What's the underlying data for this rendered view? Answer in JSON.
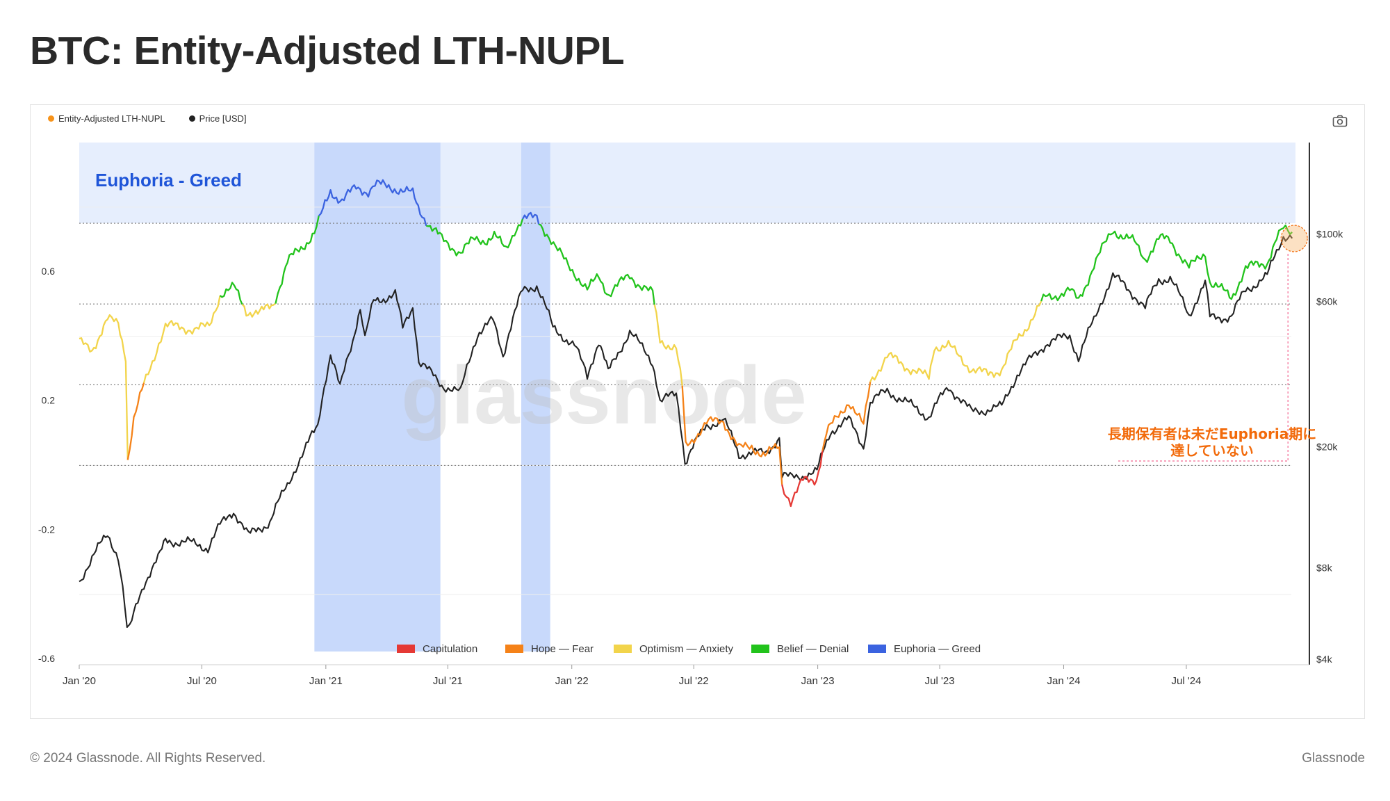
{
  "page": {
    "title": "BTC: Entity-Adjusted LTH-NUPL",
    "footer_copyright": "© 2024 Glassnode. All Rights Reserved.",
    "footer_brand": "Glassnode",
    "watermark": "glassnode"
  },
  "legend_top": [
    {
      "label": "Entity-Adjusted LTH-NUPL",
      "color": "#f7931a"
    },
    {
      "label": "Price [USD]",
      "color": "#222222"
    }
  ],
  "toolbar": {
    "camera_icon": "camera-icon"
  },
  "chart_data": {
    "type": "line",
    "x_axis": {
      "ticks": [
        "Jan '20",
        "Jul '20",
        "Jan '21",
        "Jul '21",
        "Jan '22",
        "Jul '22",
        "Jan '23",
        "Jul '23",
        "Jan '24",
        "Jul '24"
      ],
      "range": [
        "2020-01-01",
        "2024-12-10"
      ]
    },
    "y_left": {
      "range": [
        -0.6,
        1.0
      ],
      "ticks": [
        "0.6",
        "0.2",
        "-0.2",
        "-0.6"
      ],
      "tick_values": [
        0.6,
        0.2,
        -0.2,
        -0.6
      ]
    },
    "y_right": {
      "scale": "log",
      "range": [
        4000,
        200000
      ],
      "ticks": [
        "$100k",
        "$60k",
        "$20k",
        "$8k",
        "$4k"
      ],
      "tick_values": [
        100000,
        60000,
        20000,
        8000,
        4000
      ]
    },
    "zone_thresholds": [
      0.75,
      0.5,
      0.25,
      0.0
    ],
    "zones": [
      {
        "name": "Capitulation",
        "color": "#e53935",
        "below": 0.0
      },
      {
        "name": "Hope — Fear",
        "color": "#f58218",
        "from": 0.0,
        "to": 0.25
      },
      {
        "name": "Optimism — Anxiety",
        "color": "#f2d44b",
        "from": 0.25,
        "to": 0.5
      },
      {
        "name": "Belief — Denial",
        "color": "#22c31c",
        "from": 0.5,
        "to": 0.75
      },
      {
        "name": "Euphoria — Greed",
        "color": "#3b63e0",
        "above": 0.75
      }
    ],
    "euphoria_label": "Euphoria - Greed",
    "euphoria_periods": [
      [
        "2020-12-15",
        "2021-06-20"
      ],
      [
        "2021-10-18",
        "2021-11-30"
      ]
    ],
    "series": [
      {
        "name": "Entity-Adjusted LTH-NUPL",
        "points": [
          [
            "2020-01-01",
            0.38
          ],
          [
            "2020-01-20",
            0.36
          ],
          [
            "2020-02-12",
            0.45
          ],
          [
            "2020-02-28",
            0.44
          ],
          [
            "2020-03-10",
            0.34
          ],
          [
            "2020-03-13",
            0.02
          ],
          [
            "2020-03-22",
            0.14
          ],
          [
            "2020-04-06",
            0.25
          ],
          [
            "2020-04-28",
            0.38
          ],
          [
            "2020-05-08",
            0.43
          ],
          [
            "2020-06-01",
            0.43
          ],
          [
            "2020-06-20",
            0.42
          ],
          [
            "2020-07-12",
            0.43
          ],
          [
            "2020-07-28",
            0.53
          ],
          [
            "2020-08-18",
            0.55
          ],
          [
            "2020-09-05",
            0.48
          ],
          [
            "2020-09-25",
            0.47
          ],
          [
            "2020-10-15",
            0.5
          ],
          [
            "2020-10-25",
            0.56
          ],
          [
            "2020-11-05",
            0.63
          ],
          [
            "2020-11-28",
            0.68
          ],
          [
            "2020-12-15",
            0.72
          ],
          [
            "2020-12-28",
            0.79
          ],
          [
            "2021-01-08",
            0.85
          ],
          [
            "2021-01-25",
            0.82
          ],
          [
            "2021-02-15",
            0.86
          ],
          [
            "2021-03-05",
            0.85
          ],
          [
            "2021-03-15",
            0.87
          ],
          [
            "2021-04-13",
            0.86
          ],
          [
            "2021-05-10",
            0.84
          ],
          [
            "2021-05-18",
            0.8
          ],
          [
            "2021-06-05",
            0.74
          ],
          [
            "2021-06-22",
            0.7
          ],
          [
            "2021-07-20",
            0.66
          ],
          [
            "2021-08-10",
            0.7
          ],
          [
            "2021-08-28",
            0.7
          ],
          [
            "2021-09-08",
            0.71
          ],
          [
            "2021-09-25",
            0.67
          ],
          [
            "2021-10-08",
            0.73
          ],
          [
            "2021-10-20",
            0.76
          ],
          [
            "2021-11-10",
            0.77
          ],
          [
            "2021-11-25",
            0.72
          ],
          [
            "2021-12-08",
            0.67
          ],
          [
            "2022-01-05",
            0.6
          ],
          [
            "2022-01-24",
            0.54
          ],
          [
            "2022-02-10",
            0.59
          ],
          [
            "2022-02-25",
            0.53
          ],
          [
            "2022-03-28",
            0.59
          ],
          [
            "2022-04-12",
            0.56
          ],
          [
            "2022-05-01",
            0.53
          ],
          [
            "2022-05-12",
            0.39
          ],
          [
            "2022-06-05",
            0.36
          ],
          [
            "2022-06-14",
            0.24
          ],
          [
            "2022-06-19",
            0.06
          ],
          [
            "2022-07-20",
            0.13
          ],
          [
            "2022-08-14",
            0.14
          ],
          [
            "2022-09-06",
            0.05
          ],
          [
            "2022-09-25",
            0.06
          ],
          [
            "2022-10-15",
            0.03
          ],
          [
            "2022-11-05",
            0.06
          ],
          [
            "2022-11-09",
            -0.06
          ],
          [
            "2022-11-22",
            -0.11
          ],
          [
            "2022-12-10",
            -0.05
          ],
          [
            "2022-12-30",
            -0.04
          ],
          [
            "2023-01-14",
            0.1
          ],
          [
            "2023-02-16",
            0.2
          ],
          [
            "2023-03-10",
            0.12
          ],
          [
            "2023-03-20",
            0.26
          ],
          [
            "2023-04-14",
            0.34
          ],
          [
            "2023-05-10",
            0.31
          ],
          [
            "2023-06-15",
            0.27
          ],
          [
            "2023-06-23",
            0.37
          ],
          [
            "2023-07-14",
            0.37
          ],
          [
            "2023-08-17",
            0.3
          ],
          [
            "2023-09-11",
            0.28
          ],
          [
            "2023-10-01",
            0.3
          ],
          [
            "2023-10-24",
            0.39
          ],
          [
            "2023-11-10",
            0.44
          ],
          [
            "2023-12-05",
            0.52
          ],
          [
            "2024-01-10",
            0.54
          ],
          [
            "2024-01-23",
            0.51
          ],
          [
            "2024-02-15",
            0.62
          ],
          [
            "2024-03-01",
            0.68
          ],
          [
            "2024-03-14",
            0.73
          ],
          [
            "2024-04-15",
            0.69
          ],
          [
            "2024-05-01",
            0.64
          ],
          [
            "2024-05-21",
            0.7
          ],
          [
            "2024-06-07",
            0.7
          ],
          [
            "2024-07-05",
            0.61
          ],
          [
            "2024-07-29",
            0.66
          ],
          [
            "2024-08-05",
            0.57
          ],
          [
            "2024-09-06",
            0.52
          ],
          [
            "2024-09-27",
            0.61
          ],
          [
            "2024-10-29",
            0.63
          ],
          [
            "2024-11-12",
            0.7
          ],
          [
            "2024-11-22",
            0.73
          ],
          [
            "2024-12-05",
            0.72
          ]
        ]
      },
      {
        "name": "Price [USD]",
        "color": "#222222",
        "points": [
          [
            "2020-01-01",
            7200
          ],
          [
            "2020-01-20",
            8600
          ],
          [
            "2020-02-12",
            10300
          ],
          [
            "2020-02-28",
            8700
          ],
          [
            "2020-03-12",
            5000
          ],
          [
            "2020-03-16",
            5000
          ],
          [
            "2020-04-06",
            7100
          ],
          [
            "2020-04-30",
            8800
          ],
          [
            "2020-05-08",
            9800
          ],
          [
            "2020-06-10",
            9700
          ],
          [
            "2020-07-10",
            9300
          ],
          [
            "2020-07-28",
            11000
          ],
          [
            "2020-08-17",
            12300
          ],
          [
            "2020-09-08",
            10200
          ],
          [
            "2020-10-10",
            11300
          ],
          [
            "2020-11-05",
            15000
          ],
          [
            "2020-11-30",
            19300
          ],
          [
            "2020-12-20",
            23500
          ],
          [
            "2021-01-08",
            40000
          ],
          [
            "2021-01-22",
            31000
          ],
          [
            "2021-02-10",
            45000
          ],
          [
            "2021-02-21",
            57000
          ],
          [
            "2021-02-28",
            45000
          ],
          [
            "2021-03-13",
            60000
          ],
          [
            "2021-04-14",
            63500
          ],
          [
            "2021-04-25",
            49000
          ],
          [
            "2021-05-10",
            58000
          ],
          [
            "2021-05-19",
            38000
          ],
          [
            "2021-06-22",
            32000
          ],
          [
            "2021-07-20",
            30000
          ],
          [
            "2021-08-14",
            47000
          ],
          [
            "2021-09-06",
            52000
          ],
          [
            "2021-09-21",
            40000
          ],
          [
            "2021-10-20",
            65000
          ],
          [
            "2021-11-10",
            68000
          ],
          [
            "2021-12-04",
            49000
          ],
          [
            "2022-01-05",
            43000
          ],
          [
            "2022-01-24",
            34000
          ],
          [
            "2022-02-10",
            44500
          ],
          [
            "2022-02-24",
            35000
          ],
          [
            "2022-03-28",
            47500
          ],
          [
            "2022-05-01",
            38000
          ],
          [
            "2022-05-12",
            28000
          ],
          [
            "2022-06-05",
            30000
          ],
          [
            "2022-06-18",
            17800
          ],
          [
            "2022-07-20",
            23500
          ],
          [
            "2022-08-14",
            24500
          ],
          [
            "2022-09-06",
            18900
          ],
          [
            "2022-10-15",
            19100
          ],
          [
            "2022-11-05",
            21300
          ],
          [
            "2022-11-09",
            16000
          ],
          [
            "2022-11-21",
            15800
          ],
          [
            "2022-12-31",
            16500
          ],
          [
            "2023-01-20",
            22500
          ],
          [
            "2023-02-16",
            24500
          ],
          [
            "2023-03-10",
            20000
          ],
          [
            "2023-03-20",
            28000
          ],
          [
            "2023-04-14",
            30500
          ],
          [
            "2023-06-15",
            25000
          ],
          [
            "2023-07-14",
            31500
          ],
          [
            "2023-08-17",
            26000
          ],
          [
            "2023-10-01",
            27000
          ],
          [
            "2023-10-24",
            34500
          ],
          [
            "2023-12-05",
            43500
          ],
          [
            "2024-01-10",
            46500
          ],
          [
            "2024-01-23",
            39000
          ],
          [
            "2024-02-15",
            52000
          ],
          [
            "2024-03-14",
            73000
          ],
          [
            "2024-04-15",
            63000
          ],
          [
            "2024-05-01",
            57000
          ],
          [
            "2024-05-21",
            71000
          ],
          [
            "2024-06-07",
            71500
          ],
          [
            "2024-07-05",
            54000
          ],
          [
            "2024-07-29",
            69000
          ],
          [
            "2024-08-05",
            53000
          ],
          [
            "2024-09-06",
            53500
          ],
          [
            "2024-09-27",
            65500
          ],
          [
            "2024-10-29",
            72500
          ],
          [
            "2024-11-12",
            88000
          ],
          [
            "2024-11-22",
            99000
          ],
          [
            "2024-12-05",
            98000
          ]
        ]
      }
    ],
    "annotation": {
      "text_line1": "長期保有者は未だEuphoria期に",
      "text_line2": "達していない",
      "color": "#f26a0a",
      "target_date": "2024-12-05"
    }
  }
}
